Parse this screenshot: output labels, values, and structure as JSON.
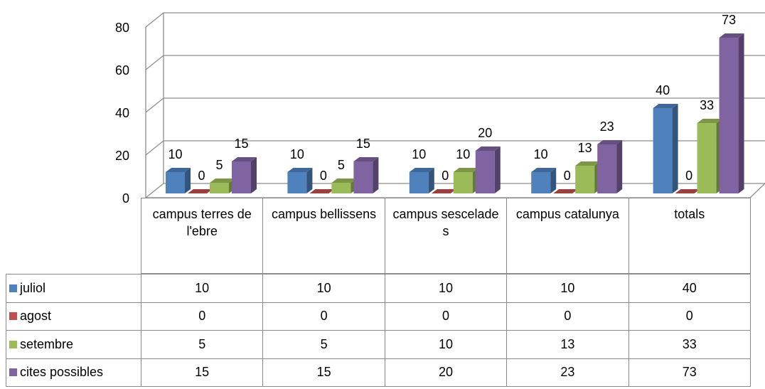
{
  "chart_data": {
    "type": "bar3d",
    "categories": [
      "campus terres de l'ebre",
      "campus bellissens",
      "campus sescelades",
      "campus catalunya",
      "totals"
    ],
    "series": [
      {
        "name": "juliol",
        "color": "#4f81bd",
        "values": [
          10,
          10,
          10,
          10,
          40
        ]
      },
      {
        "name": "agost",
        "color": "#c0504d",
        "values": [
          0,
          0,
          0,
          0,
          0
        ]
      },
      {
        "name": "setembre",
        "color": "#9bbb59",
        "values": [
          5,
          5,
          10,
          13,
          33
        ]
      },
      {
        "name": "cites possibles",
        "color": "#8064a2",
        "values": [
          15,
          15,
          20,
          23,
          73
        ]
      }
    ],
    "ylim": [
      0,
      80
    ],
    "yticks": [
      0,
      20,
      40,
      60,
      80
    ],
    "grid": true,
    "data_table": true
  }
}
